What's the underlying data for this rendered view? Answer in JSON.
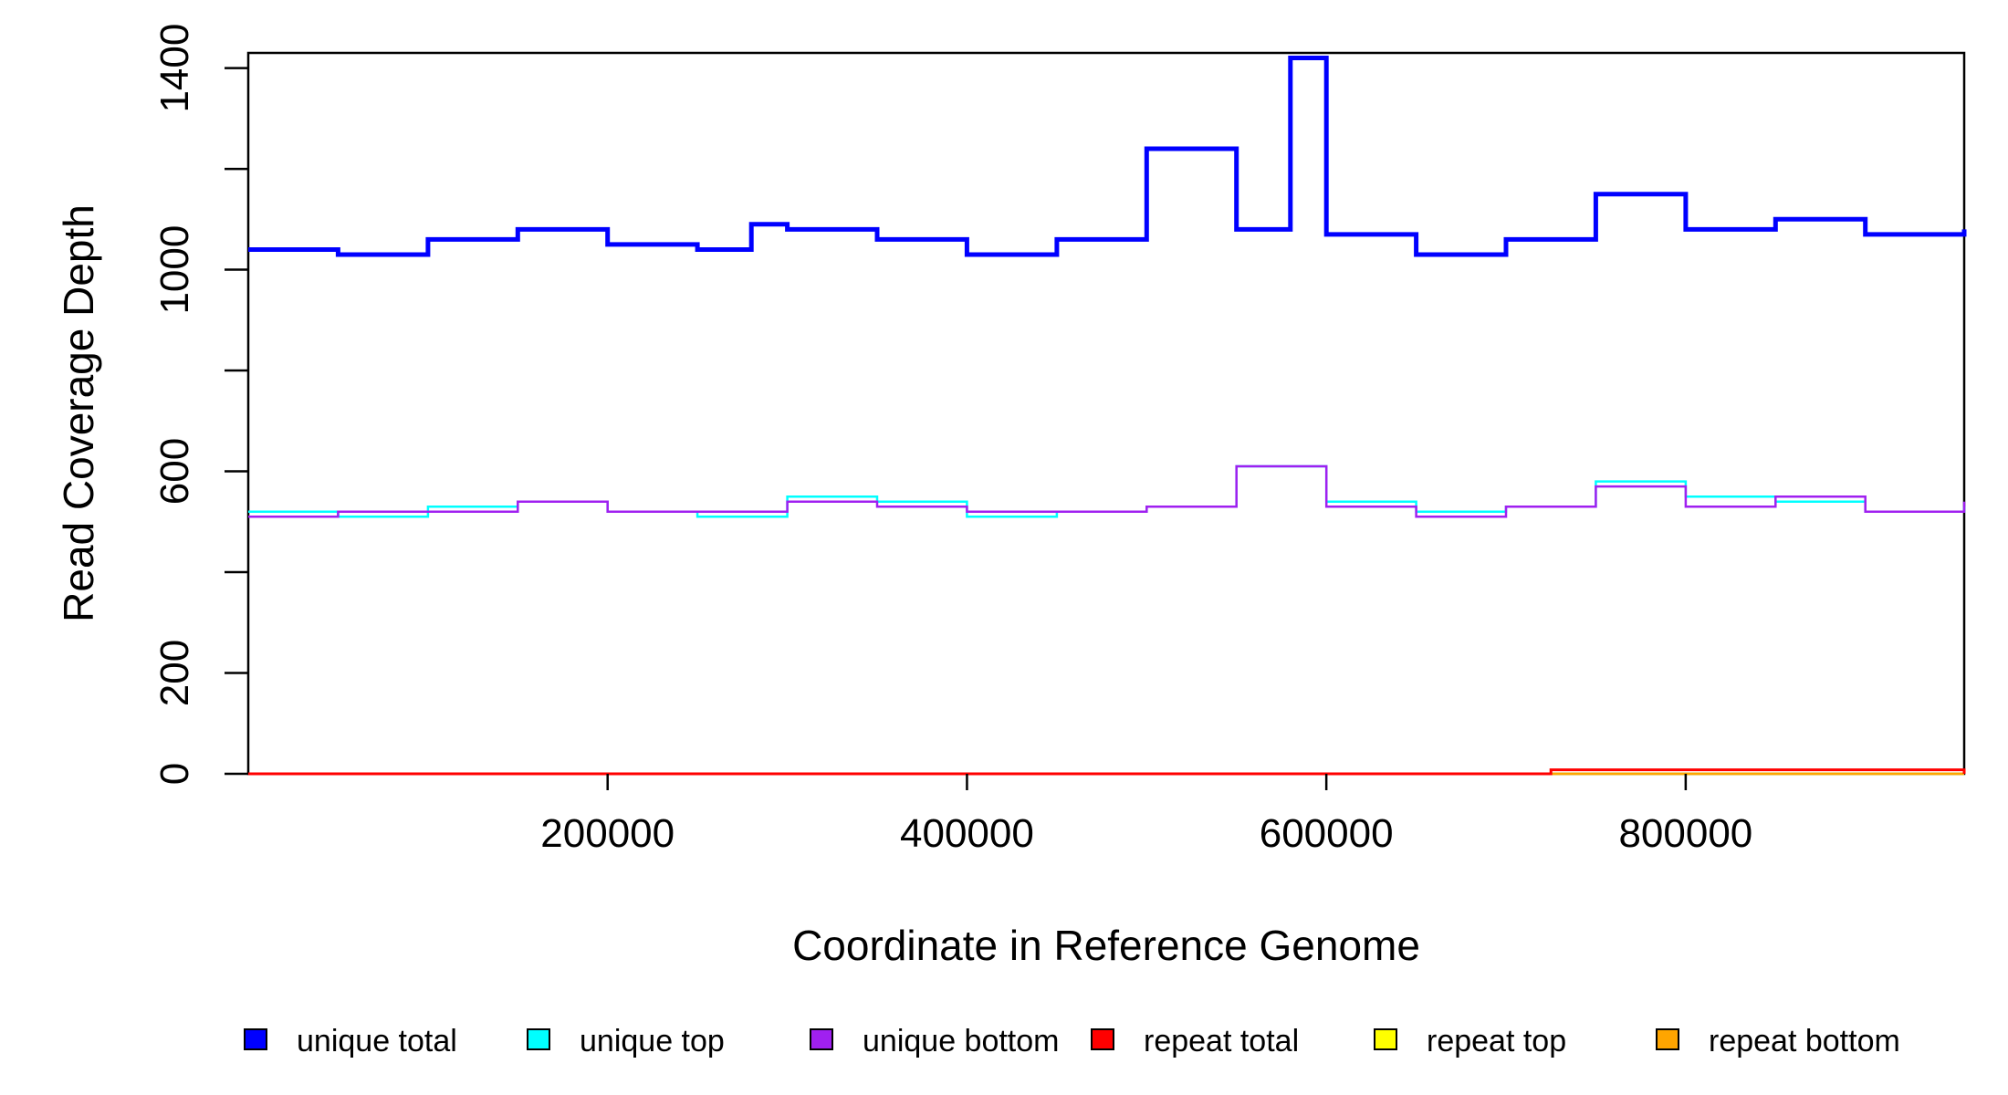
{
  "chart_data": {
    "type": "line",
    "title": "",
    "xlabel": "Coordinate in Reference Genome",
    "ylabel": "Read Coverage Depth",
    "xlim": [
      0,
      955000
    ],
    "ylim": [
      0,
      1430
    ],
    "x_ticks": [
      200000,
      400000,
      600000,
      800000
    ],
    "x_tick_labels": [
      "200000",
      "400000",
      "600000",
      "800000"
    ],
    "y_ticks": [
      0,
      200,
      400,
      600,
      800,
      1000,
      1200,
      1400
    ],
    "y_tick_labels": [
      "0",
      "200",
      "",
      "600",
      "",
      "1000",
      "",
      "1400"
    ],
    "grid": false,
    "legend_position": "bottom",
    "legend": [
      {
        "label": "unique total",
        "color": "#0000FF"
      },
      {
        "label": "unique top",
        "color": "#00FFFF"
      },
      {
        "label": "unique bottom",
        "color": "#A020F0"
      },
      {
        "label": "repeat total",
        "color": "#FF0000"
      },
      {
        "label": "repeat top",
        "color": "#FFFF00"
      },
      {
        "label": "repeat bottom",
        "color": "#FFA500"
      }
    ],
    "series": [
      {
        "name": "unique total",
        "color": "#0000FF",
        "x": [
          0,
          50000,
          100000,
          150000,
          200000,
          250000,
          280000,
          300000,
          350000,
          400000,
          450000,
          500000,
          550000,
          580000,
          600000,
          650000,
          700000,
          750000,
          800000,
          850000,
          900000,
          955000
        ],
        "values": [
          1040,
          1030,
          1060,
          1080,
          1050,
          1040,
          1090,
          1080,
          1060,
          1030,
          1060,
          1240,
          1080,
          1420,
          1070,
          1030,
          1060,
          1150,
          1080,
          1100,
          1070,
          1080
        ]
      },
      {
        "name": "unique top",
        "color": "#00FFFF",
        "x": [
          0,
          50000,
          100000,
          150000,
          200000,
          250000,
          300000,
          350000,
          400000,
          450000,
          500000,
          550000,
          600000,
          650000,
          700000,
          750000,
          800000,
          850000,
          900000,
          955000
        ],
        "values": [
          520,
          510,
          530,
          540,
          520,
          510,
          550,
          540,
          510,
          520,
          530,
          610,
          540,
          520,
          530,
          580,
          550,
          540,
          520,
          530
        ]
      },
      {
        "name": "unique bottom",
        "color": "#A020F0",
        "x": [
          0,
          50000,
          100000,
          150000,
          200000,
          250000,
          300000,
          350000,
          400000,
          450000,
          500000,
          550000,
          600000,
          650000,
          700000,
          750000,
          800000,
          850000,
          900000,
          955000
        ],
        "values": [
          510,
          520,
          520,
          540,
          520,
          520,
          540,
          530,
          520,
          520,
          530,
          610,
          530,
          510,
          530,
          570,
          530,
          550,
          520,
          540
        ]
      },
      {
        "name": "repeat total",
        "color": "#FF0000",
        "x": [
          0,
          720000,
          725000,
          955000
        ],
        "values": [
          0,
          0,
          8,
          0
        ]
      },
      {
        "name": "repeat top",
        "color": "#FFFF00",
        "x": [
          0,
          955000
        ],
        "values": [
          0,
          0
        ]
      },
      {
        "name": "repeat bottom",
        "color": "#FFA500",
        "x": [
          0,
          955000
        ],
        "values": [
          0,
          0
        ]
      }
    ]
  }
}
